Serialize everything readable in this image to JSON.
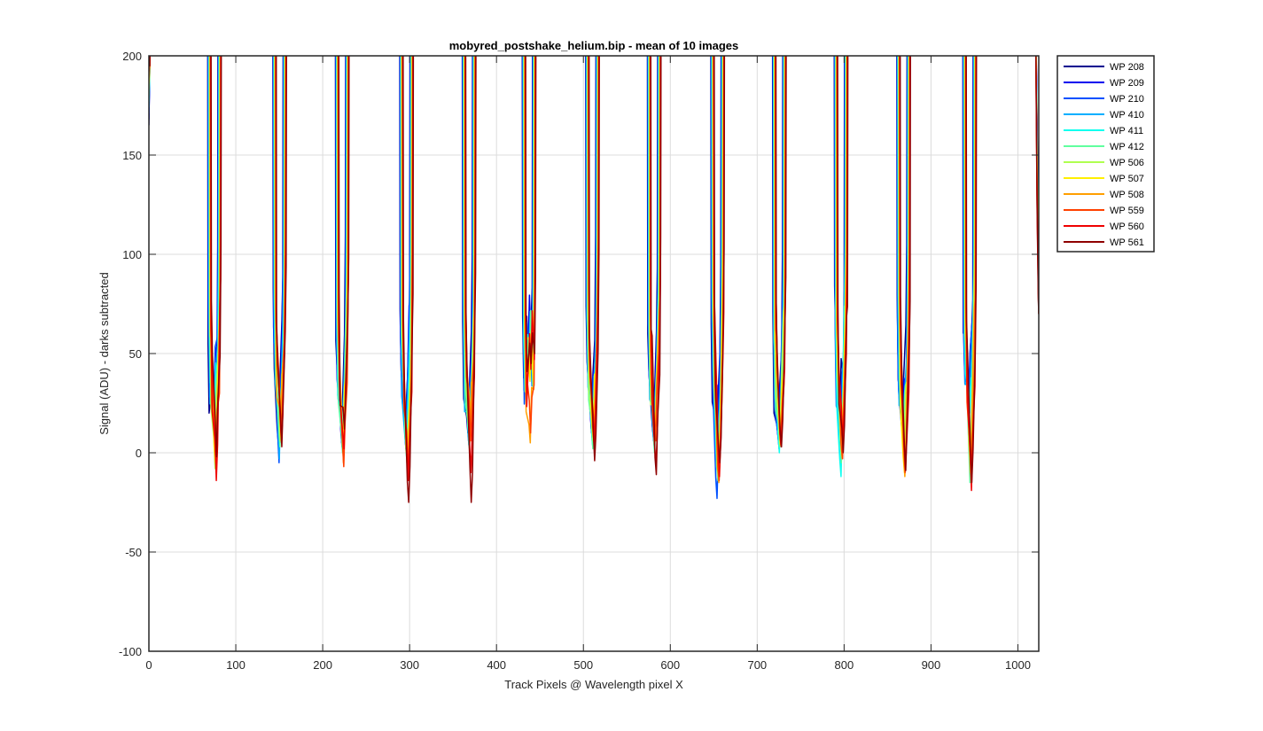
{
  "chart_data": {
    "type": "line",
    "title": "mobyred_postshake_helium.bip - mean of 10 images",
    "xlabel": "Track Pixels @ Wavelength pixel X",
    "ylabel": "Signal (ADU) - darks subtracted",
    "xlim": [
      0,
      1024
    ],
    "ylim": [
      -100,
      200
    ],
    "xticks": [
      0,
      100,
      200,
      300,
      400,
      500,
      600,
      700,
      800,
      900,
      1000
    ],
    "yticks": [
      -100,
      -50,
      0,
      50,
      100,
      150,
      200
    ],
    "grid": true,
    "legend_position": "outside-top-right",
    "fiber_centers": [
      76,
      151,
      223,
      297,
      369,
      438,
      511,
      582,
      655,
      726,
      797,
      869,
      945
    ],
    "series": [
      {
        "name": "WP 208",
        "color": "#00008f",
        "minima": [
          27,
          4,
          9,
          6,
          10,
          50,
          12,
          10,
          5,
          8,
          16,
          10,
          26
        ]
      },
      {
        "name": "WP 209",
        "color": "#0000ef",
        "minima": [
          24,
          2,
          7,
          4,
          8,
          48,
          10,
          8,
          2,
          6,
          13,
          7,
          30
        ]
      },
      {
        "name": "WP 210",
        "color": "#0050ff",
        "minima": [
          22,
          -5,
          5,
          2,
          6,
          46,
          8,
          6,
          -23,
          4,
          10,
          6,
          28
        ]
      },
      {
        "name": "WP 410",
        "color": "#00afff",
        "minima": [
          20,
          -3,
          3,
          0,
          4,
          44,
          6,
          4,
          -10,
          2,
          -5,
          8,
          24
        ]
      },
      {
        "name": "WP 411",
        "color": "#10ffef",
        "minima": [
          18,
          4,
          2,
          -2,
          3,
          42,
          4,
          2,
          -8,
          0,
          -12,
          5,
          20
        ]
      },
      {
        "name": "WP 412",
        "color": "#60ff9f",
        "minima": [
          15,
          3,
          0,
          -5,
          2,
          40,
          2,
          0,
          -14,
          3,
          -5,
          2,
          -15
        ]
      },
      {
        "name": "WP 506",
        "color": "#afff50",
        "minima": [
          -8,
          6,
          4,
          -3,
          5,
          38,
          8,
          5,
          -10,
          5,
          -2,
          0,
          -10
        ]
      },
      {
        "name": "WP 507",
        "color": "#ffef00",
        "minima": [
          -5,
          8,
          3,
          -6,
          8,
          36,
          6,
          8,
          -12,
          4,
          0,
          -10,
          -5
        ]
      },
      {
        "name": "WP 508",
        "color": "#ff9f00",
        "minima": [
          -3,
          10,
          -5,
          -8,
          10,
          5,
          8,
          9,
          -15,
          5,
          -3,
          -12,
          -8
        ]
      },
      {
        "name": "WP 559",
        "color": "#ff4000",
        "minima": [
          -6,
          8,
          -7,
          -10,
          6,
          10,
          5,
          6,
          -14,
          4,
          -3,
          -10,
          -12
        ]
      },
      {
        "name": "WP 560",
        "color": "#ef0000",
        "minima": [
          -14,
          5,
          2,
          -14,
          -10,
          42,
          3,
          -6,
          -12,
          3,
          5,
          -8,
          -19
        ]
      },
      {
        "name": "WP 561",
        "color": "#8f0000",
        "minima": [
          -2,
          3,
          12,
          -25,
          -25,
          45,
          -4,
          -11,
          -5,
          3,
          0,
          -9,
          -15
        ]
      }
    ]
  }
}
